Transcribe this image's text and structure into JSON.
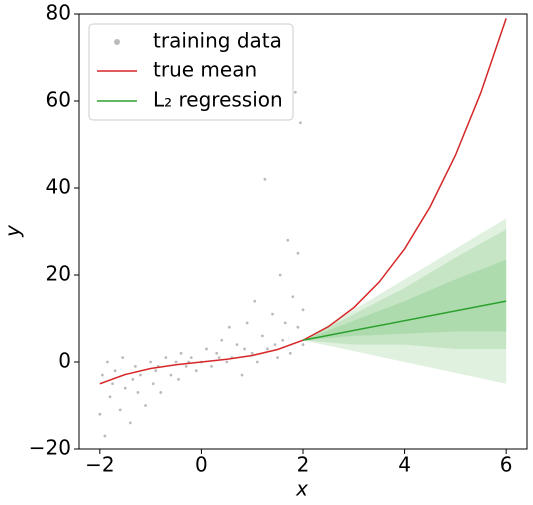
{
  "chart_data": {
    "type": "scatter",
    "xlabel": "x",
    "ylabel": "y",
    "xlim": [
      -2.41,
      6.41
    ],
    "ylim": [
      -20,
      80
    ],
    "xticks": [
      {
        "value": -2,
        "label": "−2"
      },
      0,
      2,
      4,
      6
    ],
    "yticks": [
      {
        "value": -20,
        "label": "−20"
      },
      0,
      20,
      40,
      60,
      80
    ],
    "legend_position": "upper-left",
    "scatter": {
      "name": "training data",
      "color": "#bbbbbb",
      "x": [
        -2,
        -1.95,
        -1.9,
        -1.85,
        -1.8,
        -1.75,
        -1.7,
        -1.6,
        -1.55,
        -1.5,
        -1.4,
        -1.35,
        -1.3,
        -1.25,
        -1.2,
        -1.1,
        -1,
        -0.95,
        -0.9,
        -0.85,
        -0.8,
        -0.7,
        -0.6,
        -0.5,
        -0.45,
        -0.4,
        -0.3,
        -0.25,
        -0.2,
        -0.1,
        0,
        0.1,
        0.2,
        0.3,
        0.35,
        0.4,
        0.5,
        0.55,
        0.6,
        0.7,
        0.8,
        0.85,
        0.9,
        1,
        1.05,
        1.1,
        1.2,
        1.25,
        1.3,
        1.4,
        1.45,
        1.5,
        1.55,
        1.6,
        1.65,
        1.7,
        1.75,
        1.8,
        1.85,
        1.9,
        1.9,
        1.95,
        2,
        2
      ],
      "y": [
        -12,
        -3,
        -17,
        0,
        -8,
        -5,
        -2,
        -11,
        1,
        -6,
        -14,
        -4,
        -1,
        -7,
        -3,
        -10,
        0,
        -5,
        -2,
        -1,
        -7,
        1,
        -3,
        0,
        -4,
        2,
        -1,
        0,
        1,
        -2,
        0,
        3,
        -1,
        2,
        1,
        5,
        0,
        8,
        1,
        4,
        -3,
        3,
        9,
        2,
        14,
        0,
        6,
        42,
        3,
        11,
        4,
        1,
        20,
        5,
        9,
        28,
        2,
        15,
        62,
        8,
        25,
        55,
        4,
        12
      ]
    },
    "series": [
      {
        "name": "true mean",
        "color": "#d62728",
        "x": [
          -2,
          -1.5,
          -1,
          -0.5,
          0,
          0.5,
          1,
          1.5,
          2,
          2.5,
          3,
          3.5,
          4,
          4.5,
          5,
          5.5,
          6
        ],
        "values": [
          -5,
          -2.88,
          -1.5,
          -0.62,
          0,
          0.62,
          1.5,
          2.88,
          5,
          8.12,
          12.5,
          18.38,
          26,
          35.63,
          47.5,
          61.88,
          79
        ]
      },
      {
        "name": "L₂ regression",
        "color": "#2ca02c",
        "x": [
          2,
          6
        ],
        "values": [
          5,
          14
        ]
      }
    ],
    "bands": [
      {
        "x": [
          2,
          3,
          4,
          5,
          6
        ],
        "lower": [
          5,
          2.5,
          0,
          -2.5,
          -5
        ],
        "upper": [
          5,
          12,
          19,
          26,
          33
        ]
      },
      {
        "x": [
          2,
          3,
          4,
          5,
          6
        ],
        "lower": [
          5,
          4,
          4,
          3,
          3
        ],
        "upper": [
          5,
          11,
          17,
          24,
          30.5
        ]
      },
      {
        "x": [
          2,
          3,
          4,
          5,
          6
        ],
        "lower": [
          5,
          6,
          6.5,
          7,
          7
        ],
        "upper": [
          5,
          9.5,
          14,
          19,
          23.5
        ]
      }
    ]
  }
}
